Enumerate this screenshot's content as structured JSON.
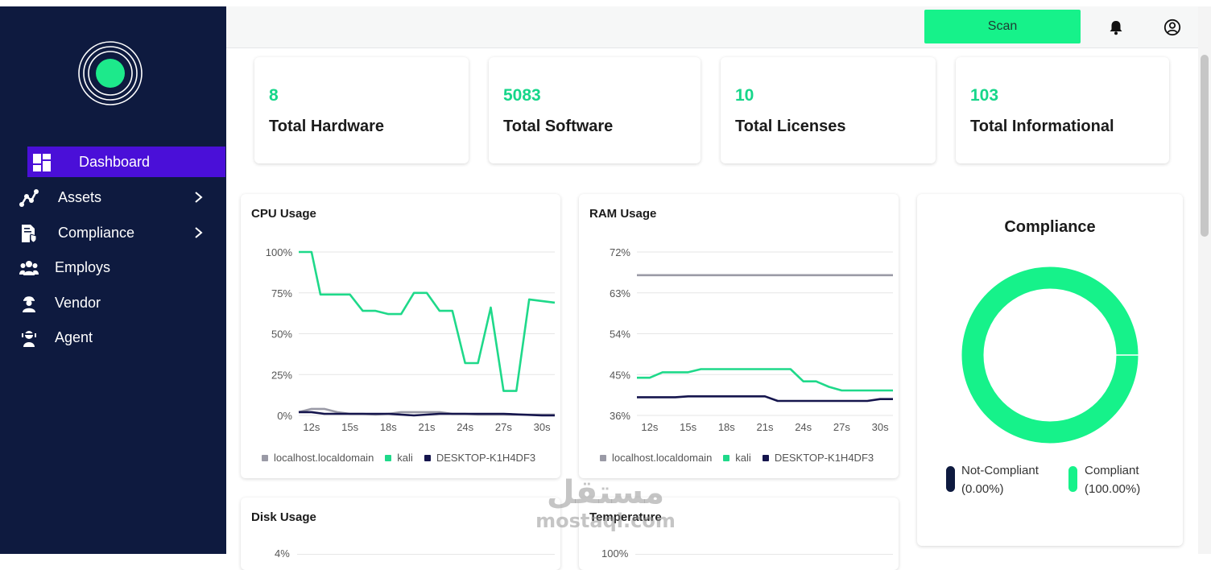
{
  "sidebar": {
    "items": [
      {
        "label": "Dashboard",
        "icon": "dashboard-icon",
        "active": true
      },
      {
        "label": "Assets",
        "icon": "assets-icon",
        "has_children": true
      },
      {
        "label": "Compliance",
        "icon": "compliance-icon",
        "has_children": true
      },
      {
        "label": "Employs",
        "icon": "employees-icon"
      },
      {
        "label": "Vendor",
        "icon": "vendor-icon"
      },
      {
        "label": "Agent",
        "icon": "agent-icon"
      }
    ]
  },
  "topbar": {
    "scan_label": "Scan",
    "icons": [
      "bell-icon",
      "user-account-icon"
    ]
  },
  "stats": [
    {
      "value": "8",
      "label": "Total Hardware"
    },
    {
      "value": "5083",
      "label": "Total Software"
    },
    {
      "value": "10",
      "label": "Total Licenses"
    },
    {
      "value": "103",
      "label": "Total Informational"
    }
  ],
  "colors": {
    "accent": "#16f28a",
    "accent_text": "#16d68a",
    "sidebar_bg": "#0e1a3f",
    "active_item": "#4a0fd8",
    "series_gray": "#9a9aa6",
    "series_green": "#1fd98a",
    "series_navy": "#15154d"
  },
  "panels": {
    "cpu_title": "CPU Usage",
    "ram_title": "RAM Usage",
    "disk_title": "Disk Usage",
    "temp_title": "Temperature",
    "compliance_title": "Compliance"
  },
  "legend": {
    "series": [
      "localhost.localdomain",
      "kali",
      "DESKTOP-K1H4DF3"
    ]
  },
  "chart_data": [
    {
      "type": "line",
      "title": "CPU Usage",
      "x": [
        "12s",
        "15s",
        "18s",
        "21s",
        "24s",
        "27s",
        "30s"
      ],
      "y_ticks": [
        "100%",
        "75%",
        "50%",
        "25%",
        "0%"
      ],
      "ylim": [
        0,
        100
      ],
      "xlim": [
        11,
        31
      ],
      "series": [
        {
          "name": "localhost.localdomain",
          "points": [
            [
              11,
              2
            ],
            [
              12,
              4
            ],
            [
              13,
              4
            ],
            [
              14,
              2
            ],
            [
              15,
              1
            ],
            [
              16,
              1
            ],
            [
              17,
              0.5
            ],
            [
              18,
              1
            ],
            [
              19,
              2
            ],
            [
              20,
              2
            ],
            [
              21,
              2
            ],
            [
              22,
              2
            ],
            [
              23,
              1
            ],
            [
              24,
              1
            ],
            [
              25,
              0.5
            ],
            [
              26,
              0.5
            ],
            [
              27,
              0.5
            ],
            [
              28,
              0.5
            ],
            [
              29,
              0.5
            ],
            [
              30,
              0.5
            ],
            [
              31,
              0.5
            ]
          ]
        },
        {
          "name": "kali",
          "points": [
            [
              11,
              100
            ],
            [
              12,
              100
            ],
            [
              12.7,
              74
            ],
            [
              15,
              74
            ],
            [
              16,
              64
            ],
            [
              17,
              64
            ],
            [
              18,
              62
            ],
            [
              19,
              62
            ],
            [
              20,
              75
            ],
            [
              21,
              75
            ],
            [
              22,
              64
            ],
            [
              23,
              64
            ],
            [
              24,
              32
            ],
            [
              25,
              32
            ],
            [
              26,
              66
            ],
            [
              27,
              15
            ],
            [
              28,
              15
            ],
            [
              29,
              71
            ],
            [
              30,
              70
            ],
            [
              31,
              69
            ]
          ]
        },
        {
          "name": "DESKTOP-K1H4DF3",
          "points": [
            [
              11,
              2
            ],
            [
              12,
              2
            ],
            [
              13,
              1
            ],
            [
              15,
              1
            ],
            [
              18,
              1
            ],
            [
              20,
              0
            ],
            [
              22,
              1
            ],
            [
              23,
              1
            ],
            [
              27,
              1
            ],
            [
              30,
              0
            ],
            [
              31,
              0
            ]
          ]
        }
      ]
    },
    {
      "type": "line",
      "title": "RAM Usage",
      "x": [
        "12s",
        "15s",
        "18s",
        "21s",
        "24s",
        "27s",
        "30s"
      ],
      "y_ticks": [
        "72%",
        "63%",
        "54%",
        "45%",
        "36%"
      ],
      "ylim": [
        36,
        72
      ],
      "xlim": [
        11,
        31
      ],
      "series": [
        {
          "name": "localhost.localdomain",
          "points": [
            [
              11,
              66.9
            ],
            [
              31,
              66.9
            ]
          ]
        },
        {
          "name": "kali",
          "points": [
            [
              11,
              44.3
            ],
            [
              12,
              44.3
            ],
            [
              13,
              45.5
            ],
            [
              15,
              45.5
            ],
            [
              16,
              46.2
            ],
            [
              23,
              46.2
            ],
            [
              24,
              43.5
            ],
            [
              25,
              43.5
            ],
            [
              26,
              42.3
            ],
            [
              27,
              41.5
            ],
            [
              31,
              41.5
            ]
          ]
        },
        {
          "name": "DESKTOP-K1H4DF3",
          "points": [
            [
              11,
              40.0
            ],
            [
              14,
              40.0
            ],
            [
              15,
              40.2
            ],
            [
              21,
              40.2
            ],
            [
              22,
              39.2
            ],
            [
              29,
              39.2
            ],
            [
              30,
              39.6
            ],
            [
              31,
              39.6
            ]
          ]
        }
      ]
    },
    {
      "type": "pie",
      "title": "Compliance",
      "categories": [
        "Not-Compliant",
        "Compliant"
      ],
      "values": [
        0.0,
        100.0
      ],
      "labels": [
        "(0.00%)",
        "(100.00%)"
      ],
      "colors": [
        "#0e1a3f",
        "#16f28a"
      ]
    },
    {
      "type": "line",
      "title": "Disk Usage",
      "y_ticks": [
        "4%"
      ]
    },
    {
      "type": "line",
      "title": "Temperature",
      "y_ticks": [
        "100%"
      ]
    }
  ],
  "watermark": {
    "arabic": "مستقل",
    "latin": "mostaql.com"
  }
}
